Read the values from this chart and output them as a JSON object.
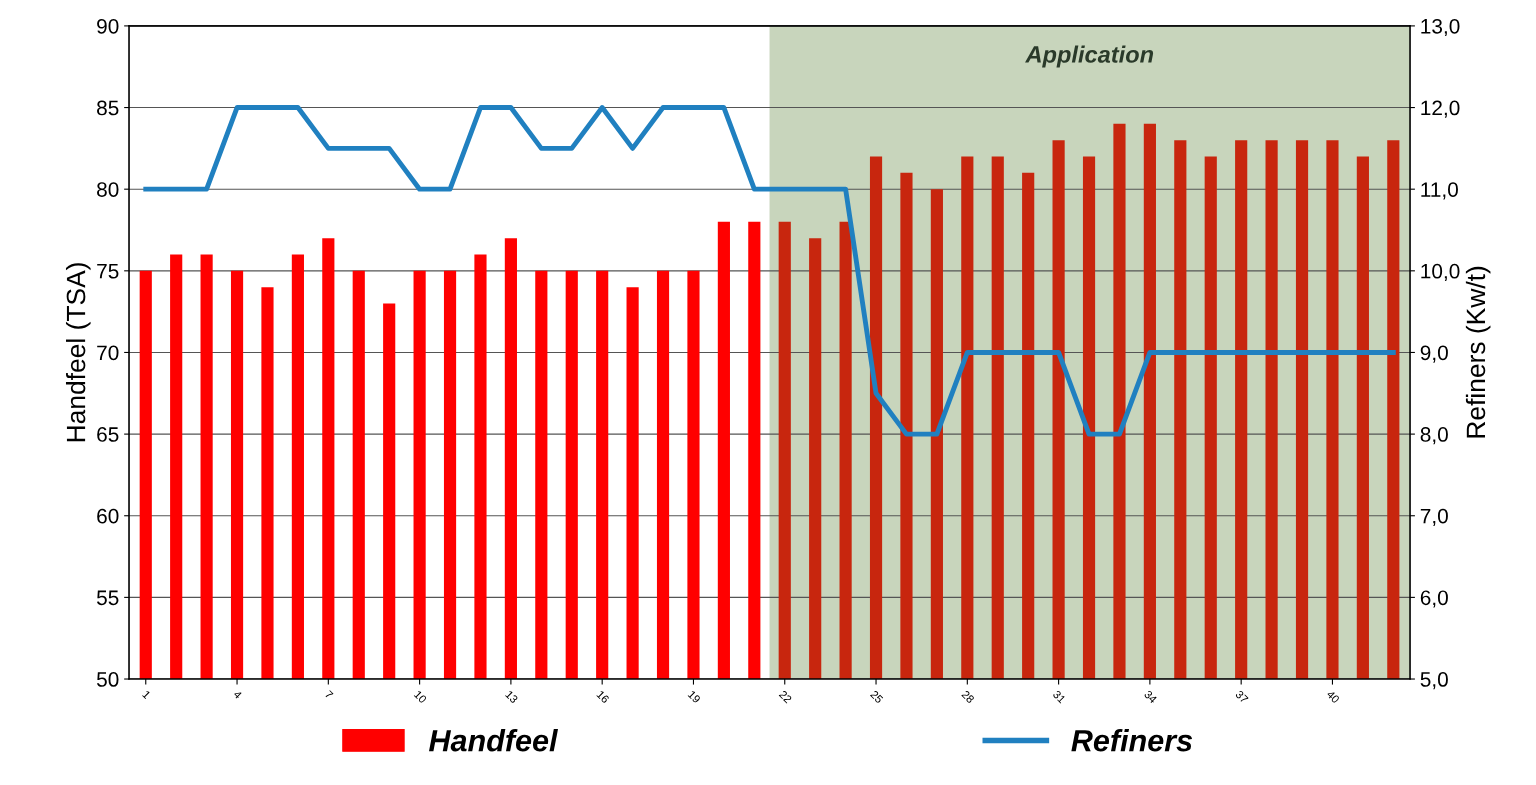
{
  "chart_data": {
    "type": "bar",
    "categories": [
      "1",
      null,
      null,
      "4",
      null,
      null,
      "7",
      null,
      null,
      "10",
      null,
      null,
      "13",
      null,
      null,
      "16",
      null,
      null,
      "19",
      null,
      null,
      "22",
      null,
      null,
      "25",
      null,
      null,
      "28",
      null,
      null,
      "31",
      null,
      null,
      "34",
      null,
      null,
      "37",
      null,
      null,
      "40",
      null,
      null
    ],
    "ylabel": "Handfeel (TSA)",
    "y2label": "Refiners (Kw/t)",
    "series": [
      {
        "name": "Handfeel",
        "color": "#ff0000",
        "colors": [
          "#ff0000",
          "#ff0000",
          "#ff0000",
          "#ff0000",
          "#ff0000",
          "#ff0000",
          "#ff0000",
          "#ff0000",
          "#ff0000",
          "#ff0000",
          "#ff0000",
          "#ff0000",
          "#ff0000",
          "#ff0000",
          "#ff0000",
          "#ff0000",
          "#ff0000",
          "#ff0000",
          "#ff0000",
          "#ff0000",
          "#ff0000",
          "#c8260e",
          "#c8260e",
          "#c8260e",
          "#c8260e",
          "#c8260e",
          "#c8260e",
          "#c8260e",
          "#c8260e",
          "#c8260e",
          "#c8260e",
          "#c8260e",
          "#c8260e",
          "#c8260e",
          "#c8260e",
          "#c8260e",
          "#c8260e",
          "#c8260e",
          "#c8260e",
          "#c8260e",
          "#c8260e",
          "#c8260e"
        ],
        "values": [
          75,
          76,
          76,
          75,
          74,
          76,
          77,
          75,
          73,
          75,
          75,
          76,
          77,
          75,
          75,
          75,
          74,
          75,
          75,
          78,
          78,
          78,
          77,
          78,
          82,
          81,
          80,
          82,
          82,
          81,
          83,
          82,
          84,
          84,
          83,
          82,
          83,
          83,
          83,
          83,
          82,
          83
        ]
      },
      {
        "name": "Refiners",
        "type": "line",
        "axis": "y2",
        "color": "#2080c0",
        "values": [
          11,
          11,
          11,
          12,
          12,
          12,
          11.5,
          11.5,
          11.5,
          11,
          11,
          12,
          12,
          11.5,
          11.5,
          12,
          11.5,
          12,
          12,
          12,
          11,
          11,
          11,
          11,
          8.5,
          8,
          8,
          9,
          9,
          9,
          9,
          8,
          8,
          9,
          9,
          9,
          9,
          9,
          9,
          9,
          9,
          9
        ]
      }
    ],
    "ylim": [
      50,
      90
    ],
    "yticks": [
      50,
      55,
      60,
      65,
      70,
      75,
      80,
      85,
      90
    ],
    "y2lim": [
      5,
      13
    ],
    "y2ticks": [
      {
        "value": 5,
        "label": "5,0"
      },
      {
        "value": 6,
        "label": "6,0"
      },
      {
        "value": 7,
        "label": "7,0"
      },
      {
        "value": 8,
        "label": "8,0"
      },
      {
        "value": 9,
        "label": "9,0"
      },
      {
        "value": 10,
        "label": "10,0"
      },
      {
        "value": 11,
        "label": "11,0"
      },
      {
        "value": 12,
        "label": "12,0"
      },
      {
        "value": 13,
        "label": "13,0"
      }
    ],
    "annotations": [
      "Application"
    ],
    "grid": "y",
    "legend": "bottom",
    "marker": "none",
    "line_style": "solid"
  }
}
